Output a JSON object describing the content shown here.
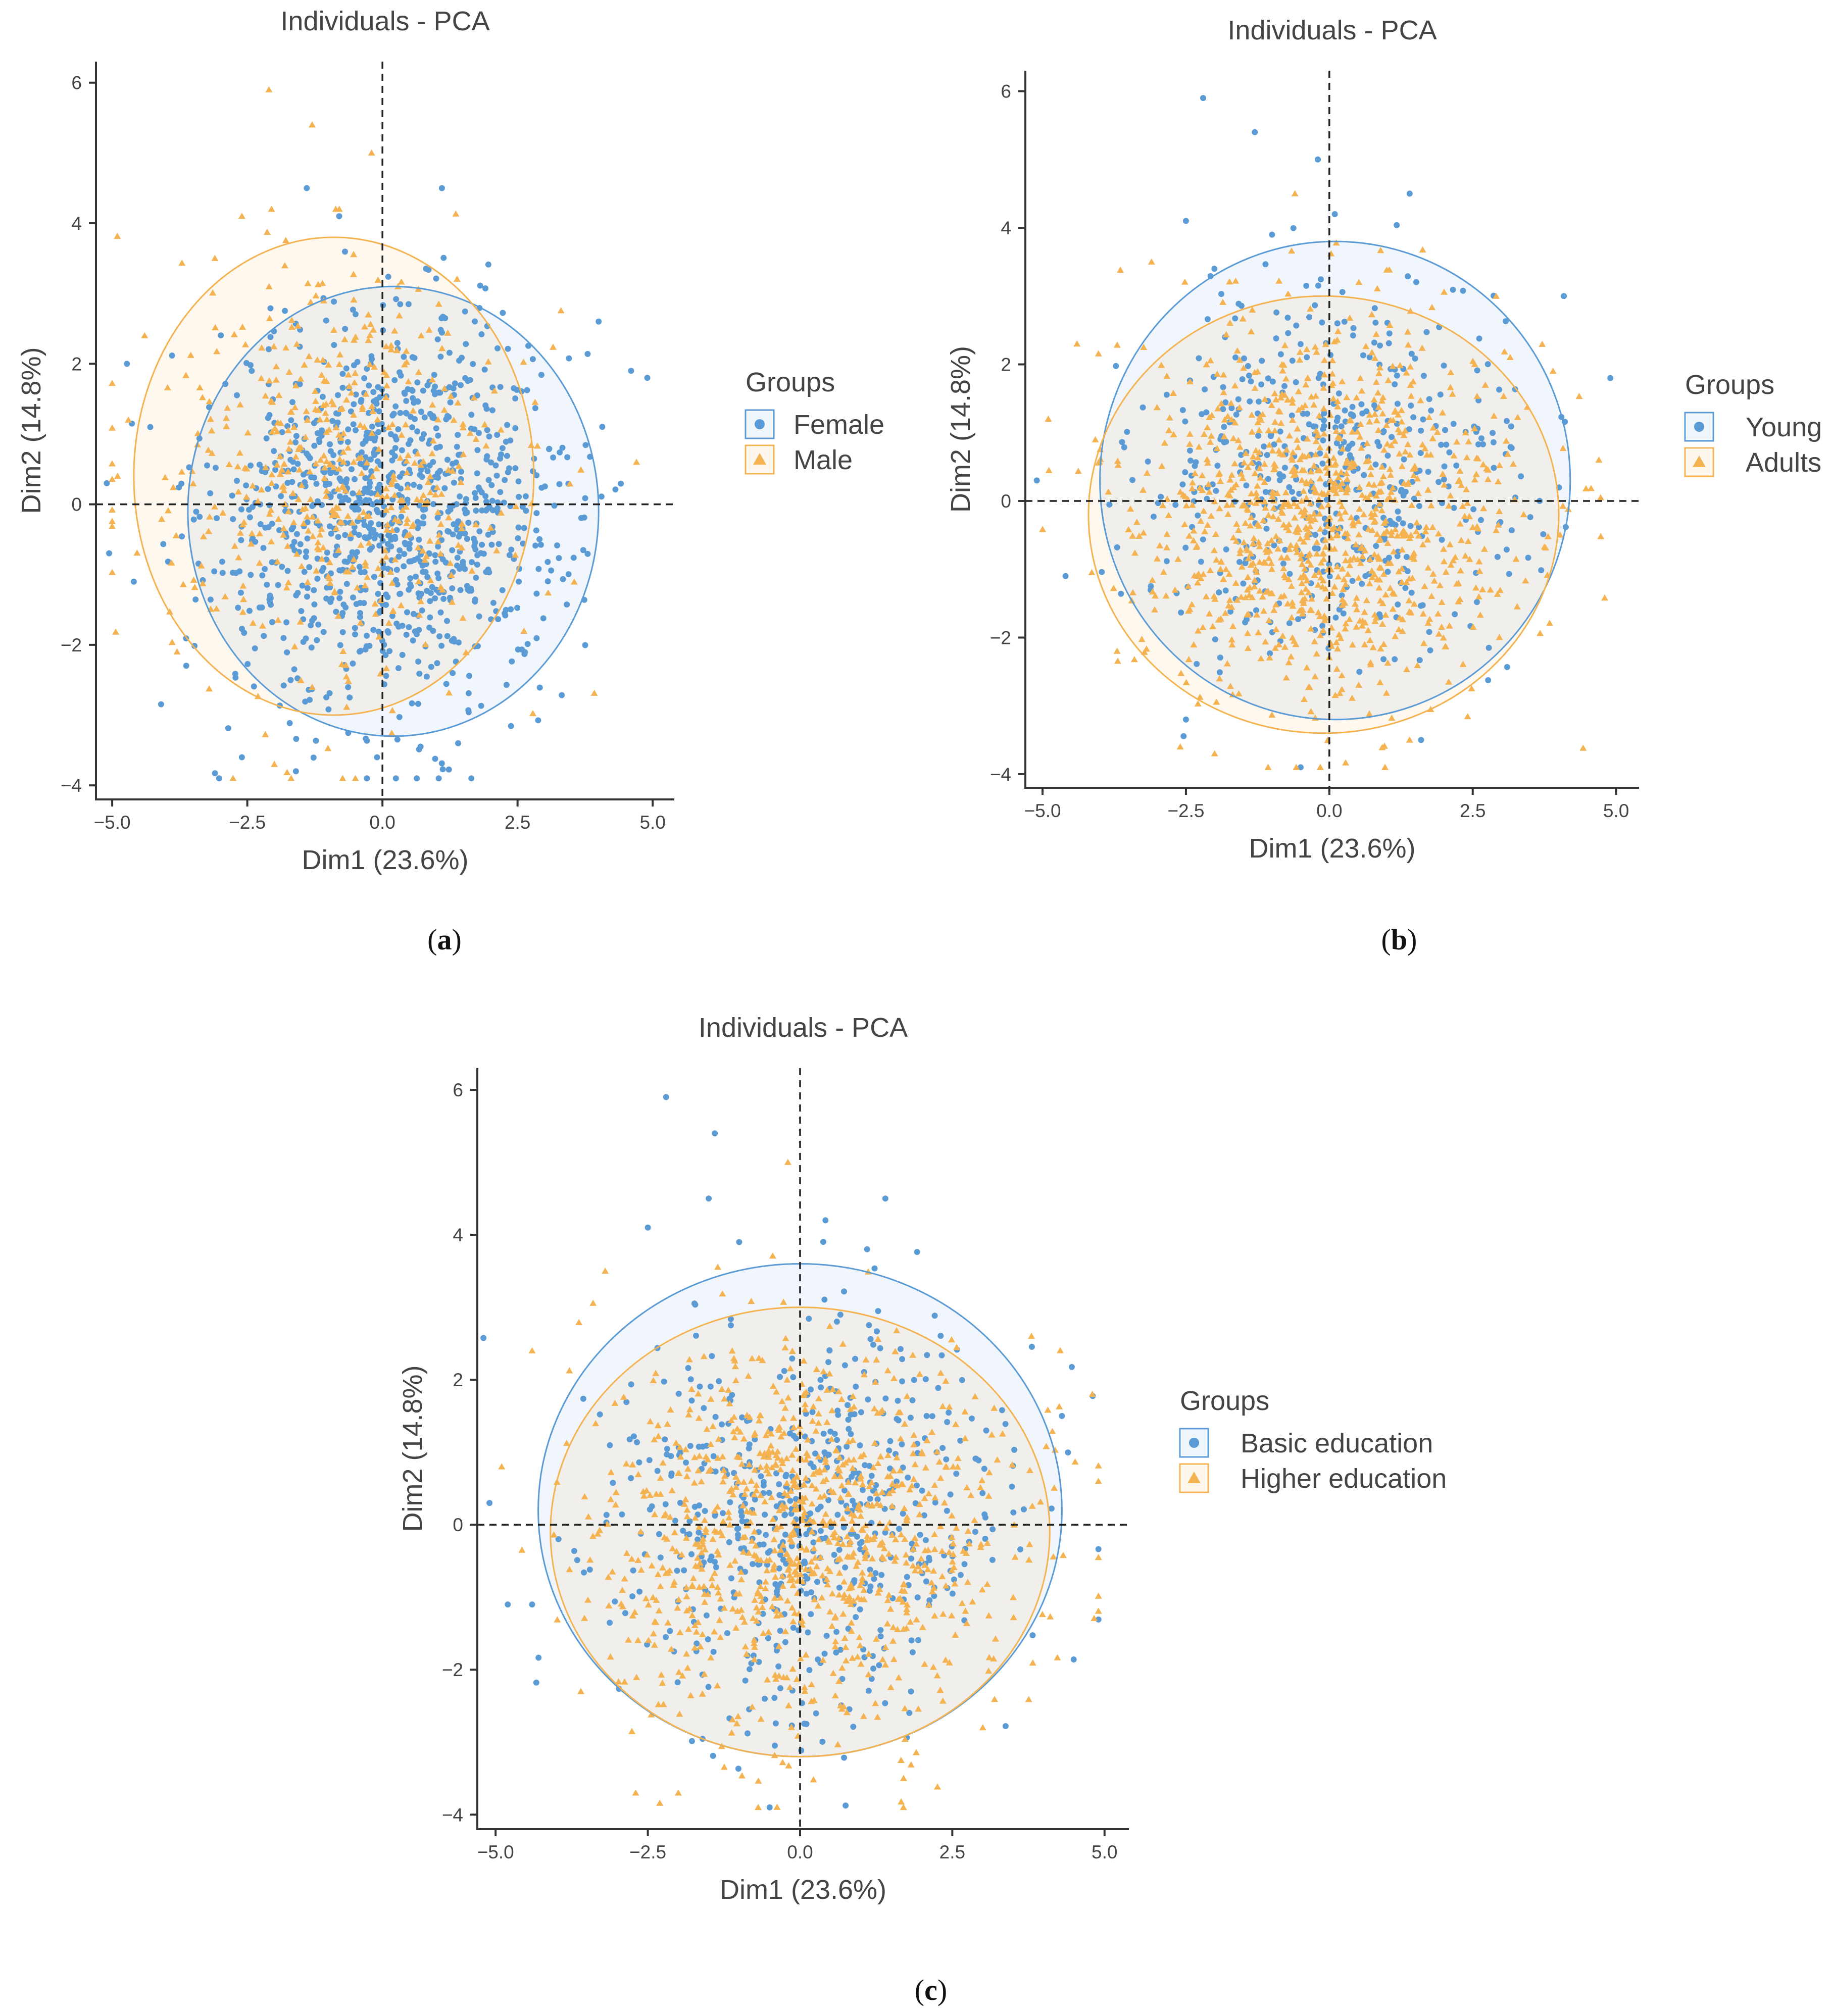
{
  "chart_data": [
    {
      "type": "scatter",
      "panel": "(a)",
      "panel_letter": "a",
      "title": "Individuals - PCA",
      "xlabel": "Dim1 (23.6%)",
      "ylabel": "Dim2 (14.8%)",
      "xlim": [
        -5.3,
        5.4
      ],
      "ylim": [
        -4.2,
        6.3
      ],
      "xticks": [
        -5.0,
        -2.5,
        0.0,
        2.5,
        5.0
      ],
      "xtick_labels": [
        "-5.0",
        "-2.5",
        "0.0",
        "2.5",
        "5.0"
      ],
      "yticks": [
        -4,
        -2,
        0,
        2,
        4,
        6
      ],
      "ytick_labels": [
        "-4",
        "-2",
        "0",
        "2",
        "4",
        "6"
      ],
      "grid": false,
      "reference_lines": {
        "x": 0,
        "y": 0,
        "style": "dashed"
      },
      "legend": {
        "title": "Groups",
        "placement": "right"
      },
      "series": [
        {
          "name": "Female",
          "marker": "circle",
          "color": "#5B9BD5",
          "count": 1050,
          "ellipse": {
            "cx": 0.2,
            "cy": -0.1,
            "rx": 3.8,
            "ry": 3.2
          },
          "cloud": {
            "mean_x": 0.2,
            "mean_y": -0.1,
            "sd_x": 1.65,
            "sd_y": 1.35,
            "min_x": -5.2,
            "max_x": 4.9
          },
          "outliers": [
            [
              -1.4,
              4.5
            ],
            [
              1.1,
              4.5
            ],
            [
              -0.8,
              4.1
            ],
            [
              4.0,
              2.6
            ],
            [
              4.6,
              1.9
            ],
            [
              4.9,
              1.8
            ],
            [
              -5.1,
              0.3
            ],
            [
              -4.6,
              -1.1
            ],
            [
              -1.6,
              -3.8
            ],
            [
              -0.1,
              -3.6
            ],
            [
              1.4,
              -3.4
            ],
            [
              -2.6,
              -3.6
            ]
          ]
        },
        {
          "name": "Male",
          "marker": "triangle",
          "color": "#F4B350",
          "count": 500,
          "ellipse": {
            "cx": -0.9,
            "cy": 0.4,
            "rx": 3.7,
            "ry": 3.4
          },
          "cloud": {
            "mean_x": -0.8,
            "mean_y": 0.3,
            "sd_x": 1.7,
            "sd_y": 1.45,
            "min_x": -5.0,
            "max_x": 4.7
          },
          "outliers": [
            [
              -2.1,
              5.9
            ],
            [
              -1.3,
              5.4
            ],
            [
              -0.2,
              5.0
            ],
            [
              -2.6,
              4.1
            ],
            [
              -3.1,
              3.5
            ],
            [
              -4.4,
              2.4
            ],
            [
              -4.7,
              1.2
            ],
            [
              -4.9,
              0.4
            ],
            [
              -2.0,
              -3.7
            ],
            [
              -0.5,
              -3.9
            ],
            [
              4.7,
              0.6
            ],
            [
              -3.8,
              -2.1
            ]
          ]
        }
      ]
    },
    {
      "type": "scatter",
      "panel": "(b)",
      "panel_letter": "b",
      "title": "Individuals - PCA",
      "xlabel": "Dim1 (23.6%)",
      "ylabel": "Dim2 (14.8%)",
      "xlim": [
        -5.3,
        5.4
      ],
      "ylim": [
        -4.2,
        6.3
      ],
      "xticks": [
        -5.0,
        -2.5,
        0.0,
        2.5,
        5.0
      ],
      "xtick_labels": [
        "-5.0",
        "-2.5",
        "0.0",
        "2.5",
        "5.0"
      ],
      "yticks": [
        -4,
        -2,
        0,
        2,
        4,
        6
      ],
      "ytick_labels": [
        "-4",
        "-2",
        "0",
        "2",
        "4",
        "6"
      ],
      "grid": false,
      "reference_lines": {
        "x": 0,
        "y": 0,
        "style": "dashed"
      },
      "legend": {
        "title": "Groups",
        "placement": "right"
      },
      "series": [
        {
          "name": "Young",
          "marker": "circle",
          "color": "#5B9BD5",
          "count": 500,
          "ellipse": {
            "cx": 0.1,
            "cy": 0.3,
            "rx": 4.1,
            "ry": 3.5
          },
          "cloud": {
            "mean_x": 0.1,
            "mean_y": 0.3,
            "sd_x": 1.65,
            "sd_y": 1.4,
            "min_x": -5.2,
            "max_x": 4.9
          },
          "outliers": [
            [
              -2.2,
              5.9
            ],
            [
              -1.3,
              5.4
            ],
            [
              -0.2,
              5.0
            ],
            [
              1.4,
              4.5
            ],
            [
              -1.0,
              3.9
            ],
            [
              -2.5,
              4.1
            ],
            [
              4.9,
              1.8
            ],
            [
              -5.1,
              0.3
            ],
            [
              -0.5,
              -3.9
            ],
            [
              1.6,
              -3.5
            ],
            [
              -2.5,
              -3.2
            ],
            [
              -4.6,
              -1.1
            ]
          ]
        },
        {
          "name": "Adults",
          "marker": "triangle",
          "color": "#F4B350",
          "count": 1050,
          "ellipse": {
            "cx": -0.1,
            "cy": -0.2,
            "rx": 4.1,
            "ry": 3.2
          },
          "cloud": {
            "mean_x": -0.1,
            "mean_y": -0.2,
            "sd_x": 1.65,
            "sd_y": 1.3,
            "min_x": -5.0,
            "max_x": 4.8
          },
          "outliers": [
            [
              -0.6,
              4.5
            ],
            [
              -3.1,
              3.5
            ],
            [
              -4.4,
              2.3
            ],
            [
              -4.9,
              1.2
            ],
            [
              -2.0,
              -3.7
            ],
            [
              -2.6,
              -3.6
            ],
            [
              1.4,
              -3.5
            ],
            [
              4.7,
              0.6
            ],
            [
              -3.7,
              -2.2
            ],
            [
              3.9,
              1.9
            ]
          ]
        }
      ]
    },
    {
      "type": "scatter",
      "panel": "(c)",
      "panel_letter": "c",
      "title": "Individuals - PCA",
      "xlabel": "Dim1 (23.6%)",
      "ylabel": "Dim2 (14.8%)",
      "xlim": [
        -5.3,
        5.4
      ],
      "ylim": [
        -4.2,
        6.3
      ],
      "xticks": [
        -5.0,
        -2.5,
        0.0,
        2.5,
        5.0
      ],
      "xtick_labels": [
        "-5.0",
        "-2.5",
        "0.0",
        "2.5",
        "5.0"
      ],
      "yticks": [
        -4,
        -2,
        0,
        2,
        4,
        6
      ],
      "ytick_labels": [
        "-4",
        "-2",
        "0",
        "2",
        "4",
        "6"
      ],
      "grid": false,
      "reference_lines": {
        "x": 0,
        "y": 0,
        "style": "dashed"
      },
      "legend": {
        "title": "Groups",
        "placement": "right"
      },
      "series": [
        {
          "name": "Basic education",
          "marker": "circle",
          "color": "#5B9BD5",
          "count": 600,
          "ellipse": {
            "cx": 0.0,
            "cy": 0.2,
            "rx": 4.3,
            "ry": 3.4
          },
          "cloud": {
            "mean_x": 0.0,
            "mean_y": 0.1,
            "sd_x": 1.7,
            "sd_y": 1.4,
            "min_x": -5.2,
            "max_x": 4.9
          },
          "outliers": [
            [
              -2.2,
              5.9
            ],
            [
              -1.4,
              5.4
            ],
            [
              -1.5,
              4.5
            ],
            [
              1.4,
              4.5
            ],
            [
              -2.5,
              4.1
            ],
            [
              -1.0,
              3.9
            ],
            [
              4.3,
              1.5
            ],
            [
              -5.1,
              0.3
            ],
            [
              -4.8,
              -1.1
            ],
            [
              -0.5,
              -3.9
            ],
            [
              -4.4,
              -1.1
            ],
            [
              1.1,
              3.8
            ]
          ]
        },
        {
          "name": "Higher education",
          "marker": "triangle",
          "color": "#F4B350",
          "count": 950,
          "ellipse": {
            "cx": 0.0,
            "cy": -0.1,
            "rx": 4.1,
            "ry": 3.1
          },
          "cloud": {
            "mean_x": 0.0,
            "mean_y": -0.1,
            "sd_x": 1.65,
            "sd_y": 1.3,
            "min_x": -5.0,
            "max_x": 4.9
          },
          "outliers": [
            [
              -0.2,
              5.0
            ],
            [
              -3.2,
              3.5
            ],
            [
              -4.4,
              2.4
            ],
            [
              3.8,
              2.6
            ],
            [
              4.8,
              1.8
            ],
            [
              4.9,
              0.6
            ],
            [
              -2.0,
              -3.7
            ],
            [
              -2.7,
              -3.7
            ],
            [
              1.7,
              -3.5
            ],
            [
              -4.9,
              0.8
            ],
            [
              3.0,
              -2.8
            ],
            [
              -3.6,
              -2.3
            ]
          ]
        }
      ]
    }
  ]
}
